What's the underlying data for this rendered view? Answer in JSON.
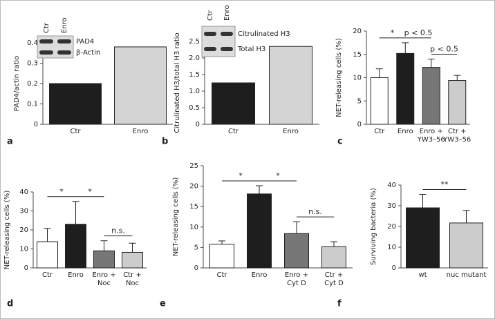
{
  "chart_data": [
    {
      "type": "bar",
      "panel": "a",
      "ylabel": "PAD4/actin ratio",
      "categories": [
        [
          "Ctr"
        ],
        [
          "Enro"
        ]
      ],
      "values": [
        0.2,
        0.38
      ],
      "colors": [
        "#1e1e1e",
        "#d4d4d4"
      ],
      "ylim": [
        0,
        0.4
      ],
      "yticks": [
        0,
        0.1,
        0.2,
        0.3,
        0.4
      ],
      "blot": {
        "lanes": [
          "Ctr",
          "Enro"
        ],
        "bands": [
          "PAD4",
          "β-Actin"
        ]
      }
    },
    {
      "type": "bar",
      "panel": "b",
      "ylabel": "Citrulinated H3/total H3 ratio",
      "categories": [
        [
          "Ctr"
        ],
        [
          "Enro"
        ]
      ],
      "values": [
        1.25,
        2.35
      ],
      "colors": [
        "#1e1e1e",
        "#d4d4d4"
      ],
      "ylim": [
        0,
        2.5
      ],
      "yticks": [
        0,
        0.5,
        {
          "value": 1,
          "label": "1.0"
        },
        1.5,
        {
          "value": 2,
          "label": "2.0"
        },
        2.5
      ],
      "blot": {
        "lanes": [
          "Ctr",
          "Enro"
        ],
        "bands": [
          "Citrulinated H3",
          "Total H3"
        ]
      }
    },
    {
      "type": "bar",
      "panel": "c",
      "ylabel": "NET-releasing cells (%)",
      "categories": [
        [
          "Ctr"
        ],
        [
          "Enro"
        ],
        [
          "Enro +",
          "YW3–56"
        ],
        [
          "Ctr +",
          "YW3–56"
        ]
      ],
      "values": [
        10,
        15.2,
        12.2,
        9.4
      ],
      "errors": [
        1.9,
        2.3,
        1.8,
        1.1
      ],
      "colors": [
        "#ffffff",
        "#1e1e1e",
        "#777777",
        "#cccccc"
      ],
      "ylim": [
        0,
        20
      ],
      "yticks": [
        0,
        5,
        10,
        15,
        20
      ],
      "annotations": [
        {
          "text": "*",
          "from": 0,
          "to": 1
        },
        {
          "text": "p < 0.5",
          "from": 1,
          "to": 2
        },
        {
          "text": "p < 0.5",
          "from": 2,
          "to": 3
        }
      ]
    },
    {
      "type": "bar",
      "panel": "d",
      "ylabel": "NET-releasing cells (%)",
      "categories": [
        [
          "Ctr"
        ],
        [
          "Enro"
        ],
        [
          "Enro +",
          "Noc"
        ],
        [
          "Ctr +",
          "Noc"
        ]
      ],
      "values": [
        13.8,
        23,
        9,
        8.2
      ],
      "errors": [
        7,
        12,
        5.3,
        4.8
      ],
      "colors": [
        "#ffffff",
        "#1e1e1e",
        "#777777",
        "#cccccc"
      ],
      "ylim": [
        0,
        40
      ],
      "yticks": [
        0,
        10,
        20,
        30,
        40
      ],
      "annotations": [
        {
          "text": "*",
          "from": 0,
          "to": 1
        },
        {
          "text": "*",
          "from": 1,
          "to": 2
        },
        {
          "text": "n.s.",
          "from": 2,
          "to": 3
        }
      ]
    },
    {
      "type": "bar",
      "panel": "e",
      "ylabel": "NET-releasing cells (%)",
      "categories": [
        [
          "Ctr"
        ],
        [
          "Enro"
        ],
        [
          "Enro +",
          "Cyt D"
        ],
        [
          "Ctr +",
          "Cyt D"
        ]
      ],
      "values": [
        5.8,
        18.1,
        8.4,
        5.2
      ],
      "errors": [
        0.8,
        2,
        2.9,
        1.2
      ],
      "colors": [
        "#ffffff",
        "#1e1e1e",
        "#777777",
        "#cccccc"
      ],
      "ylim": [
        0,
        25
      ],
      "yticks": [
        0,
        5,
        10,
        15,
        20,
        25
      ],
      "annotations": [
        {
          "text": "*",
          "from": 0,
          "to": 1
        },
        {
          "text": "*",
          "from": 1,
          "to": 2
        },
        {
          "text": "n.s.",
          "from": 2,
          "to": 3
        }
      ]
    },
    {
      "type": "bar",
      "panel": "f",
      "ylabel": "Surviving bacteria (%)",
      "categories": [
        [
          "wt"
        ],
        [
          "nuc mutant"
        ]
      ],
      "values": [
        29,
        21.7
      ],
      "errors": [
        6.5,
        6
      ],
      "colors": [
        "#1e1e1e",
        "#cccccc"
      ],
      "ylim": [
        0,
        40
      ],
      "yticks": [
        0,
        10,
        20,
        30,
        40
      ],
      "annotations": [
        {
          "text": "**",
          "from": 0,
          "to": 1
        }
      ]
    }
  ]
}
